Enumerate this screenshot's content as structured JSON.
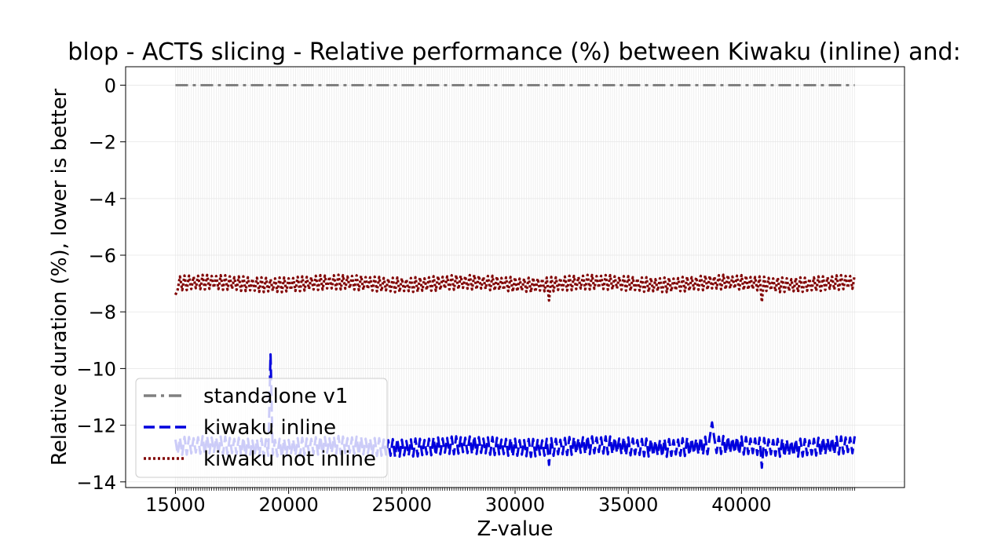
{
  "chart_data": {
    "type": "line",
    "title": "blop - ACTS slicing - Relative performance (%) between Kiwaku (inline) and:",
    "xlabel": "Z-value",
    "ylabel": "Relative duration (%), lower is better",
    "xlim": [
      12800,
      47200
    ],
    "ylim": [
      -14.2,
      0.65
    ],
    "x_ticks": [
      15000,
      20000,
      25000,
      30000,
      35000,
      40000
    ],
    "x_tick_labels": [
      "15000",
      "20000",
      "25000",
      "30000",
      "35000",
      "40000"
    ],
    "y_ticks": [
      0,
      -2,
      -4,
      -6,
      -8,
      -10,
      -12,
      -14
    ],
    "y_tick_labels": [
      "0",
      "−2",
      "−4",
      "−6",
      "−8",
      "−10",
      "−12",
      "−14"
    ],
    "x_range": [
      15000,
      45000
    ],
    "x_step": 100,
    "grid": true,
    "legend_position": "lower-left",
    "series": [
      {
        "name": "standalone v1",
        "color": "#808080",
        "style": "dashdot",
        "base": 0,
        "amplitude": 0,
        "spikes": []
      },
      {
        "name": "kiwaku inline",
        "color": "#0000dd",
        "style": "dashed",
        "base": -12.75,
        "amplitude": 0.32,
        "spikes": [
          {
            "x": 19200,
            "value": -9.5
          },
          {
            "x": 31500,
            "value": -13.4
          },
          {
            "x": 38700,
            "value": -11.9
          },
          {
            "x": 40900,
            "value": -13.5
          }
        ]
      },
      {
        "name": "kiwaku not inline",
        "color": "#800000",
        "style": "dotted",
        "base": -7.0,
        "amplitude": 0.26,
        "spikes": [
          {
            "x": 15000,
            "value": -7.4
          },
          {
            "x": 31500,
            "value": -7.6
          },
          {
            "x": 40900,
            "value": -7.65
          }
        ]
      }
    ]
  }
}
